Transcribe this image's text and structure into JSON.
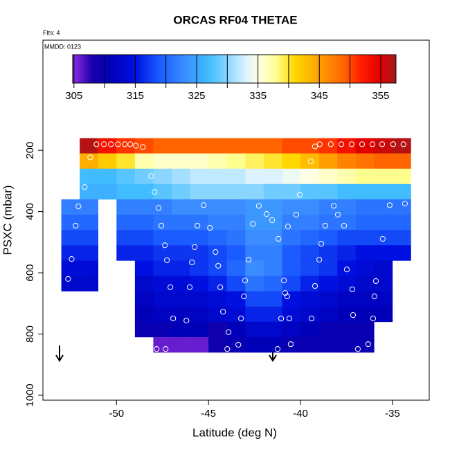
{
  "chart_data": {
    "type": "heatmap",
    "title": "ORCAS RF04 THETAE",
    "flights_note": "Flts: 4",
    "date_note": "MMDD: 0123",
    "x_label": "Latitude (deg N)",
    "y_label": "PSXC (mbar)",
    "xlim": [
      -54,
      -33
    ],
    "xticks": [
      -50,
      -45,
      -40,
      -35
    ],
    "ylim": [
      1016,
      -160
    ],
    "yticks": [
      200,
      400,
      600,
      800,
      1000
    ],
    "x_edges": [
      -53,
      -52,
      -51,
      -50,
      -49,
      -48,
      -47,
      -46,
      -45,
      -44,
      -43,
      -42,
      -41,
      -40,
      -39,
      -38,
      -37,
      -36,
      -35,
      -34
    ],
    "y_edges": [
      160,
      210,
      260,
      310,
      360,
      410,
      460,
      510,
      560,
      610,
      660,
      710,
      760,
      810,
      860
    ],
    "z": [
      [
        null,
        357,
        353,
        351,
        350,
        349,
        349,
        349,
        349,
        349,
        349,
        349,
        350,
        350,
        351,
        353,
        355,
        356,
        357
      ],
      [
        null,
        344,
        342,
        340,
        337,
        336,
        336,
        336,
        337,
        338,
        339,
        340,
        341,
        343,
        345,
        347,
        348,
        349,
        349
      ],
      [
        null,
        327,
        327,
        328,
        329,
        330,
        331,
        332,
        332,
        332,
        333,
        333,
        334,
        335,
        336,
        337,
        338,
        338,
        338
      ],
      [
        null,
        326,
        326,
        327,
        327,
        328,
        329,
        330,
        330,
        330,
        330,
        329,
        329,
        328,
        328,
        327,
        327,
        327,
        327
      ],
      [
        322,
        322,
        null,
        322,
        322,
        322,
        323,
        323,
        323,
        323,
        324,
        324,
        323,
        323,
        322,
        322,
        321,
        321,
        321
      ],
      [
        320,
        320,
        null,
        320,
        320,
        321,
        321,
        321,
        322,
        322,
        324,
        324,
        322,
        322,
        321,
        321,
        320,
        320,
        320
      ],
      [
        318,
        318,
        null,
        318,
        318,
        319,
        319,
        319,
        320,
        321,
        323,
        323,
        321,
        320,
        319,
        318,
        318,
        318,
        318
      ],
      [
        316,
        316,
        null,
        316,
        316,
        317,
        317,
        317,
        318,
        319,
        322,
        322,
        319,
        318,
        317,
        316,
        315,
        315,
        315
      ],
      [
        314,
        314,
        null,
        null,
        315,
        316,
        316,
        317,
        318,
        320,
        323,
        322,
        319,
        318,
        317,
        315,
        314,
        313,
        null
      ],
      [
        313,
        313,
        null,
        null,
        313,
        314,
        314,
        315,
        316,
        318,
        321,
        320,
        318,
        316,
        315,
        314,
        313,
        313,
        null
      ],
      [
        null,
        null,
        null,
        null,
        312,
        313,
        313,
        313,
        314,
        315,
        318,
        318,
        315,
        314,
        313,
        312,
        312,
        312,
        null
      ],
      [
        null,
        null,
        null,
        null,
        311,
        312,
        312,
        312,
        313,
        314,
        316,
        316,
        314,
        313,
        312,
        311,
        311,
        311,
        null
      ],
      [
        null,
        null,
        null,
        null,
        310,
        310,
        311,
        311,
        309,
        311,
        313,
        313,
        312,
        311,
        310,
        310,
        310,
        null,
        null
      ],
      [
        null,
        null,
        null,
        null,
        null,
        306,
        306,
        306,
        309,
        310,
        311,
        311,
        310,
        310,
        310,
        310,
        310,
        null,
        null
      ]
    ],
    "points": {
      "x": [
        -51.09,
        -50.68,
        -50.3,
        -49.92,
        -49.55,
        -49.25,
        -48.95,
        -48.57,
        -39.21,
        -38.95,
        -38.35,
        -37.78,
        -37.22,
        -36.65,
        -36.09,
        -35.56,
        -34.96,
        -34.4,
        -51.43,
        -39.44,
        -48.12,
        -51.73,
        -47.93,
        -40.04,
        -52.07,
        -47.71,
        -45.26,
        -42.26,
        -41.84,
        -40.23,
        -38.19,
        -35.15,
        -34.32,
        -37.97,
        -52.22,
        -47.56,
        -45.6,
        -44.92,
        -42.59,
        -41.54,
        -40.68,
        -38.65,
        -37.63,
        -35.53,
        -41.2,
        -38.87,
        -47.37,
        -45.75,
        -44.62,
        -52.44,
        -47.26,
        -45.9,
        -44.47,
        -42.82,
        -38.98,
        -37.48,
        -52.63,
        -47.07,
        -46.02,
        -44.36,
        -43.01,
        -40.9,
        -40.83,
        -40.72,
        -39.21,
        -37.18,
        -35.9,
        -35.98,
        -43.08,
        -44.21,
        -46.92,
        -46.2,
        -43.23,
        -41.05,
        -40.6,
        -39.4,
        -37.14,
        -36.05,
        -43.91,
        -43.38,
        -43.98,
        -47.82,
        -47.33,
        -41.24,
        -40.53,
        -36.88,
        -36.32
      ],
      "y": [
        180,
        180,
        180,
        180,
        180,
        180,
        185,
        189,
        187,
        180,
        180,
        180,
        180,
        180,
        180,
        180,
        180,
        180,
        223,
        236,
        284,
        320,
        336,
        345,
        383,
        388,
        379,
        381,
        408,
        410,
        381,
        379,
        374,
        410,
        446,
        446,
        446,
        453,
        440,
        428,
        449,
        446,
        446,
        489,
        489,
        505,
        510,
        516,
        532,
        555,
        559,
        566,
        577,
        557,
        557,
        589,
        620,
        647,
        647,
        647,
        625,
        625,
        666,
        677,
        643,
        654,
        627,
        677,
        677,
        727,
        749,
        756,
        749,
        749,
        749,
        749,
        738,
        749,
        794,
        835,
        849,
        849,
        849,
        849,
        833,
        849,
        833
      ]
    },
    "clim": [
      304.8,
      357.5
    ],
    "colorbar_ticks": [
      305,
      315,
      325,
      335,
      345,
      355
    ],
    "colorbar_minor_ticks": [
      310,
      320,
      330,
      340,
      350
    ],
    "colorscale": [
      [
        305,
        "#8a2be2"
      ],
      [
        308,
        "#1a00a8"
      ],
      [
        311,
        "#0000b8"
      ],
      [
        315,
        "#0010e0"
      ],
      [
        319,
        "#1a5cff"
      ],
      [
        323,
        "#3a8cff"
      ],
      [
        327,
        "#40bcff"
      ],
      [
        330,
        "#8ad6ff"
      ],
      [
        333,
        "#dcf2ff"
      ],
      [
        335,
        "#ffffe6"
      ],
      [
        338,
        "#ffff90"
      ],
      [
        341,
        "#ffd800"
      ],
      [
        345,
        "#ffa000"
      ],
      [
        349,
        "#ff6400"
      ],
      [
        352,
        "#ff1a00"
      ],
      [
        355,
        "#e00000"
      ],
      [
        358,
        "#a01c1c"
      ]
    ],
    "point_color": "#ffffff",
    "frame_color": "#000000"
  }
}
